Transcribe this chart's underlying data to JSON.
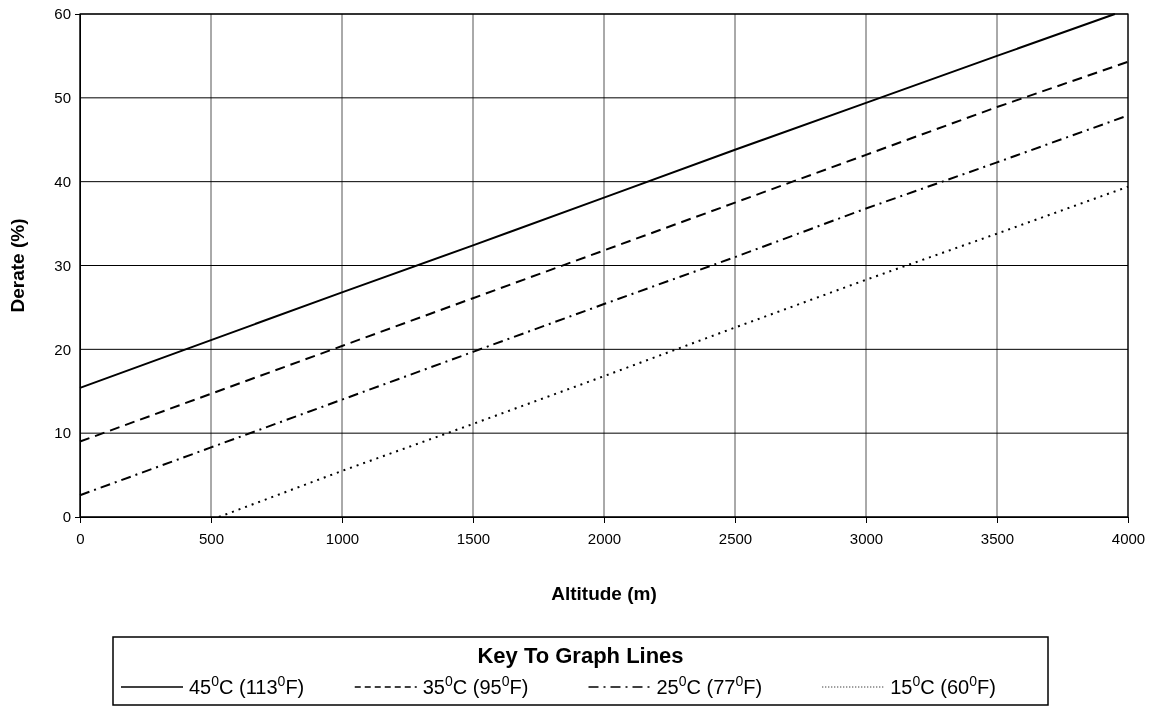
{
  "chart_data": {
    "type": "line",
    "xlabel": "Altitude (m)",
    "ylabel": "Derate (%)",
    "legend_title": "Key To Graph Lines",
    "xlim": [
      0,
      4000
    ],
    "xticks": [
      0,
      500,
      1000,
      1500,
      2000,
      2500,
      3000,
      3500,
      4000
    ],
    "ylim": [
      0,
      60
    ],
    "yticks": [
      0,
      10,
      20,
      30,
      40,
      50,
      60
    ],
    "grid": true,
    "legend": "bottom",
    "marker": "none",
    "series": [
      {
        "name": "45$^{0}$C (113$^{0}$F)",
        "color": "#000000",
        "line_style": "solid",
        "x": [
          0,
          500,
          1000,
          1500,
          2000,
          2500,
          3000,
          3500,
          3950
        ],
        "values": [
          15.4,
          21.1,
          26.8,
          32.4,
          38.1,
          43.8,
          49.4,
          55.0,
          60
        ]
      },
      {
        "name": "35$^{0}$C (95$^{0}$F)",
        "color": "#000000",
        "line_style": "dashed",
        "x": [
          0,
          500,
          1000,
          1500,
          2000,
          2500,
          3000,
          3500,
          4000
        ],
        "values": [
          9.0,
          14.7,
          20.4,
          26.1,
          31.8,
          37.5,
          43.2,
          48.9,
          54.3
        ]
      },
      {
        "name": "25$^{0}$C (77$^{0}$F)",
        "color": "#000000",
        "line_style": "dashdot",
        "x": [
          0,
          500,
          1000,
          1500,
          2000,
          2500,
          3000,
          3500,
          4000
        ],
        "values": [
          2.6,
          8.3,
          14.0,
          19.7,
          25.4,
          31.0,
          36.8,
          42.3,
          47.9
        ]
      },
      {
        "name": "15$^{0}$C (60$^{0}$F)",
        "color": "#000000",
        "line_style": "dotted",
        "x": [
          530,
          1000,
          1500,
          2000,
          2500,
          3000,
          3500,
          4000
        ],
        "values": [
          0,
          5.5,
          11.1,
          16.8,
          22.6,
          28.3,
          33.8,
          39.4
        ]
      }
    ]
  }
}
